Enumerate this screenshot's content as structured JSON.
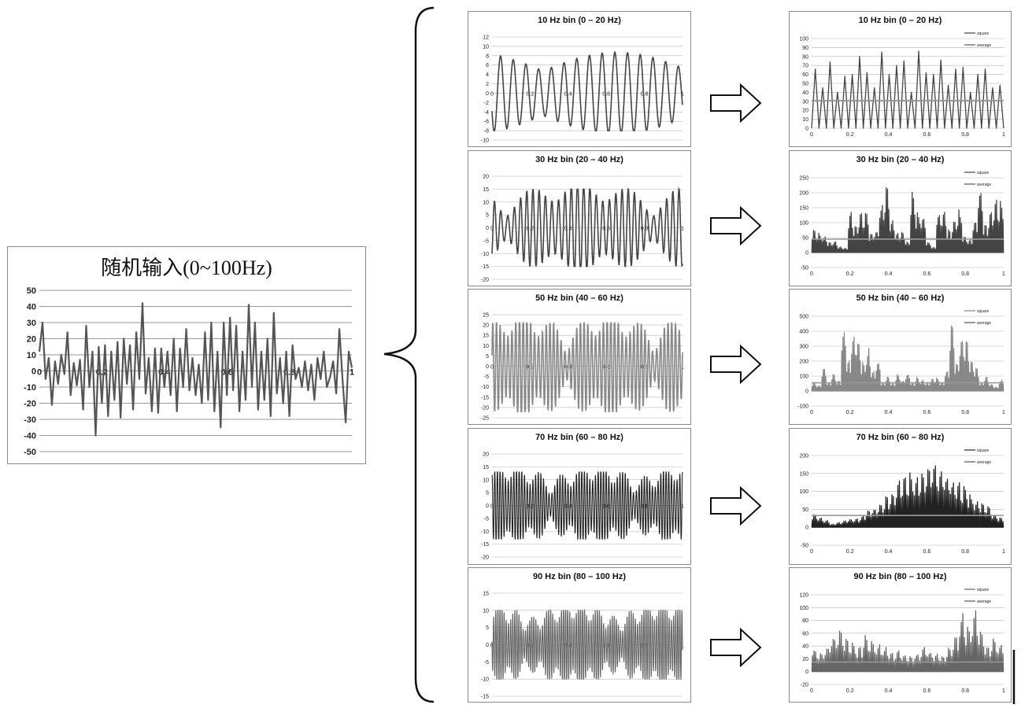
{
  "chart_data": [
    {
      "id": "input",
      "type": "line",
      "title": "随机输入(0~100Hz)",
      "xlim": [
        0,
        1
      ],
      "ylim": [
        -50,
        50
      ],
      "x_ticks": [
        "0",
        "0.2",
        "0.4",
        "0.6",
        "0.8",
        "1"
      ],
      "y_ticks": [
        "50",
        "40",
        "30",
        "20",
        "10",
        "0",
        "-10",
        "-20",
        "-30",
        "-40",
        "-50"
      ],
      "grid": true,
      "color": "#555555",
      "series": [
        {
          "x": [
            0,
            0.01,
            0.02,
            0.03,
            0.04,
            0.05,
            0.06,
            0.07,
            0.08,
            0.09,
            0.1,
            0.11,
            0.12,
            0.13,
            0.14,
            0.15,
            0.16,
            0.17,
            0.18,
            0.19,
            0.2,
            0.21,
            0.22,
            0.23,
            0.24,
            0.25,
            0.26,
            0.27,
            0.28,
            0.29,
            0.3,
            0.31,
            0.32,
            0.33,
            0.34,
            0.35,
            0.36,
            0.37,
            0.38,
            0.39,
            0.4,
            0.41,
            0.42,
            0.43,
            0.44,
            0.45,
            0.46,
            0.47,
            0.48,
            0.49,
            0.5,
            0.51,
            0.52,
            0.53,
            0.54,
            0.55,
            0.56,
            0.57,
            0.58,
            0.59,
            0.6,
            0.61,
            0.62,
            0.63,
            0.64,
            0.65,
            0.66,
            0.67,
            0.68,
            0.69,
            0.7,
            0.71,
            0.72,
            0.73,
            0.74,
            0.75,
            0.76,
            0.77,
            0.78,
            0.79,
            0.8,
            0.81,
            0.82,
            0.83,
            0.84,
            0.85,
            0.86,
            0.87,
            0.88,
            0.89,
            0.9,
            0.91,
            0.92,
            0.93,
            0.94,
            0.95,
            0.96,
            0.97,
            0.98,
            0.99,
            1.0
          ],
          "y": [
            12,
            30,
            -5,
            8,
            -21,
            6,
            -8,
            10,
            -2,
            24,
            -15,
            5,
            -9,
            7,
            -24,
            28,
            -10,
            12,
            -40,
            15,
            -20,
            16,
            -28,
            12,
            -18,
            18,
            -29,
            20,
            -8,
            16,
            -24,
            24,
            -5,
            42,
            -14,
            8,
            -25,
            14,
            -26,
            14,
            -10,
            12,
            -15,
            20,
            -25,
            14,
            -10,
            26,
            -12,
            8,
            -15,
            4,
            -20,
            24,
            -18,
            30,
            -25,
            12,
            -35,
            30,
            -15,
            33,
            -12,
            28,
            -25,
            12,
            -18,
            41,
            -10,
            30,
            -24,
            12,
            -18,
            20,
            -28,
            36,
            -14,
            8,
            -20,
            12,
            -28,
            16,
            -5,
            2,
            -10,
            6,
            -12,
            4,
            -18,
            8,
            -5,
            12,
            -10,
            -4,
            6,
            -14,
            26,
            -5,
            -32,
            12,
            2
          ]
        }
      ]
    },
    {
      "id": "b10",
      "type": "line",
      "title": "10 Hz bin (0 – 20 Hz)",
      "xlim": [
        0,
        1
      ],
      "ylim": [
        -10,
        12
      ],
      "x_ticks": [
        "0",
        "0.2",
        "0.4",
        "0.6",
        "0.8",
        "1"
      ],
      "y_ticks": [
        "12",
        "10",
        "8",
        "6",
        "4",
        "2",
        "0",
        "-2",
        "-4",
        "-6",
        "-8",
        "-10"
      ],
      "grid": true,
      "color": "#444444",
      "series": [
        {
          "freq": 15,
          "amplitude_range": [
            -8,
            9.5
          ]
        }
      ]
    },
    {
      "id": "b10sq",
      "type": "line",
      "title": "10 Hz bin (0 – 20 Hz)",
      "xlim": [
        0,
        1
      ],
      "ylim": [
        0,
        100
      ],
      "x_ticks": [
        "0",
        "0.2",
        "0.4",
        "0.6",
        "0.8",
        "1"
      ],
      "y_ticks": [
        "100",
        "90",
        "80",
        "70",
        "60",
        "50",
        "40",
        "30",
        "20",
        "10",
        "0"
      ],
      "grid": true,
      "color": "#444444",
      "legend": "top-right",
      "series": [
        {
          "name": "square",
          "peaks": [
            66,
            45,
            74,
            40,
            58,
            60,
            80,
            62,
            45,
            85,
            60,
            70,
            75,
            40,
            86,
            62,
            60,
            76,
            48,
            66,
            68,
            40,
            60,
            66,
            45,
            48
          ]
        },
        {
          "name": "average",
          "value": 31
        }
      ]
    },
    {
      "id": "b30",
      "type": "line",
      "title": "30 Hz bin (20 – 40 Hz)",
      "xlim": [
        0,
        1
      ],
      "ylim": [
        -20,
        20
      ],
      "x_ticks": [
        "0",
        "0.2",
        "0.4",
        "0.6",
        "0.8",
        "1"
      ],
      "y_ticks": [
        "20",
        "15",
        "10",
        "5",
        "0",
        "-5",
        "-10",
        "-15",
        "-20"
      ],
      "grid": true,
      "color": "#444444",
      "series": [
        {
          "freq": 30,
          "amplitude_range": [
            -15,
            15
          ]
        }
      ]
    },
    {
      "id": "b30sq",
      "type": "line",
      "title": "30 Hz bin (20 – 40 Hz)",
      "xlim": [
        0,
        1
      ],
      "ylim": [
        -50,
        250
      ],
      "x_ticks": [
        "0",
        "0.2",
        "0.4",
        "0.6",
        "0.8",
        "1"
      ],
      "y_ticks": [
        "250",
        "200",
        "150",
        "100",
        "50",
        "0",
        "-50"
      ],
      "grid": true,
      "color": "#444444",
      "legend": "top-right",
      "series": [
        {
          "name": "square",
          "peaks": [
            80,
            70,
            60,
            35,
            40,
            20,
            15,
            150,
            100,
            150,
            140,
            70,
            80,
            180,
            230,
            120,
            70,
            80,
            40,
            230,
            150,
            130,
            40,
            20,
            150,
            155,
            80,
            120,
            150,
            60,
            50,
            120,
            230,
            100,
            140,
            200,
            180
          ]
        },
        {
          "name": "average",
          "value": 45
        }
      ]
    },
    {
      "id": "b50",
      "type": "line",
      "title": "50 Hz bin (40 – 60 Hz)",
      "xlim": [
        0,
        1
      ],
      "ylim": [
        -25,
        25
      ],
      "x_ticks": [
        "0",
        "0.2",
        "0.4",
        "0.6",
        "0.8",
        "1"
      ],
      "y_ticks": [
        "25",
        "20",
        "15",
        "10",
        "5",
        "0",
        "-5",
        "-10",
        "-15",
        "-20",
        "-25"
      ],
      "grid": true,
      "color": "#888888",
      "series": [
        {
          "freq": 50,
          "amplitude_range": [
            -22,
            21
          ]
        }
      ]
    },
    {
      "id": "b50sq",
      "type": "line",
      "title": "50 Hz bin (40 – 60 Hz)",
      "xlim": [
        0,
        1
      ],
      "ylim": [
        -100,
        500
      ],
      "x_ticks": [
        "0",
        "0.2",
        "0.4",
        "0.6",
        "0.8",
        "1"
      ],
      "y_ticks": [
        "500",
        "400",
        "300",
        "200",
        "100",
        "0",
        "-100"
      ],
      "grid": true,
      "color": "#888888",
      "legend": "top-right",
      "series": [
        {
          "name": "square",
          "peaks": [
            60,
            40,
            160,
            60,
            120,
            70,
            460,
            220,
            400,
            360,
            200,
            300,
            150,
            220,
            60,
            110,
            60,
            120,
            80,
            130,
            60,
            100,
            80,
            60,
            90,
            100,
            60,
            150,
            460,
            200,
            400,
            350,
            230,
            160,
            60,
            100,
            50,
            30,
            80
          ]
        },
        {
          "name": "average",
          "value": 55
        }
      ]
    },
    {
      "id": "b70",
      "type": "line",
      "title": "70 Hz bin (60 – 80 Hz)",
      "xlim": [
        0,
        1
      ],
      "ylim": [
        -20,
        20
      ],
      "x_ticks": [
        "0",
        "0.2",
        "0.4",
        "0.6",
        "0.8",
        "1"
      ],
      "y_ticks": [
        "20",
        "15",
        "10",
        "5",
        "0",
        "-5",
        "-10",
        "-15",
        "-20"
      ],
      "grid": true,
      "color": "#222222",
      "series": [
        {
          "freq": 70,
          "amplitude_range": [
            -13,
            13
          ]
        }
      ]
    },
    {
      "id": "b70sq",
      "type": "line",
      "title": "70 Hz bin (60 – 80 Hz)",
      "xlim": [
        0,
        1
      ],
      "ylim": [
        -50,
        200
      ],
      "x_ticks": [
        "0",
        "0.2",
        "0.4",
        "0.6",
        "0.8",
        "1"
      ],
      "y_ticks": [
        "200",
        "150",
        "100",
        "50",
        "0",
        "-50"
      ],
      "grid": true,
      "color": "#222222",
      "legend": "top-right",
      "series": [
        {
          "name": "square",
          "peaks": [
            40,
            30,
            20,
            10,
            15,
            20,
            25,
            25,
            35,
            50,
            60,
            70,
            90,
            110,
            140,
            150,
            160,
            155,
            170,
            180,
            190,
            170,
            160,
            140,
            130,
            120,
            100,
            80,
            70,
            60,
            40,
            30
          ]
        },
        {
          "name": "average",
          "value": 33
        }
      ]
    },
    {
      "id": "b90",
      "type": "line",
      "title": "90 Hz bin (80 – 100 Hz)",
      "xlim": [
        0,
        1
      ],
      "ylim": [
        -15,
        15
      ],
      "x_ticks": [
        "0",
        "0.2",
        "0.4",
        "0.6",
        "0.8",
        "1"
      ],
      "y_ticks": [
        "15",
        "10",
        "5",
        "0",
        "-5",
        "-10",
        "-15"
      ],
      "grid": true,
      "color": "#666666",
      "series": [
        {
          "freq": 90,
          "amplitude_range": [
            -10,
            10
          ]
        }
      ]
    },
    {
      "id": "b90sq",
      "type": "line",
      "title": "90 Hz bin (80 – 100 Hz)",
      "xlim": [
        0,
        1
      ],
      "ylim": [
        -20,
        120
      ],
      "x_ticks": [
        "0",
        "0.2",
        "0.4",
        "0.6",
        "0.8",
        "1"
      ],
      "y_ticks": [
        "120",
        "100",
        "80",
        "60",
        "40",
        "20",
        "0",
        "-20"
      ],
      "grid": true,
      "color": "#666666",
      "legend": "top-right",
      "series": [
        {
          "name": "square",
          "peaks": [
            38,
            30,
            45,
            60,
            72,
            55,
            50,
            40,
            60,
            50,
            45,
            40,
            30,
            35,
            30,
            25,
            30,
            40,
            35,
            30,
            25,
            40,
            55,
            100,
            75,
            100,
            70,
            40,
            55,
            45
          ]
        },
        {
          "name": "average",
          "value": 15
        }
      ]
    }
  ],
  "legend_labels": {
    "square": "square",
    "average": "average"
  }
}
